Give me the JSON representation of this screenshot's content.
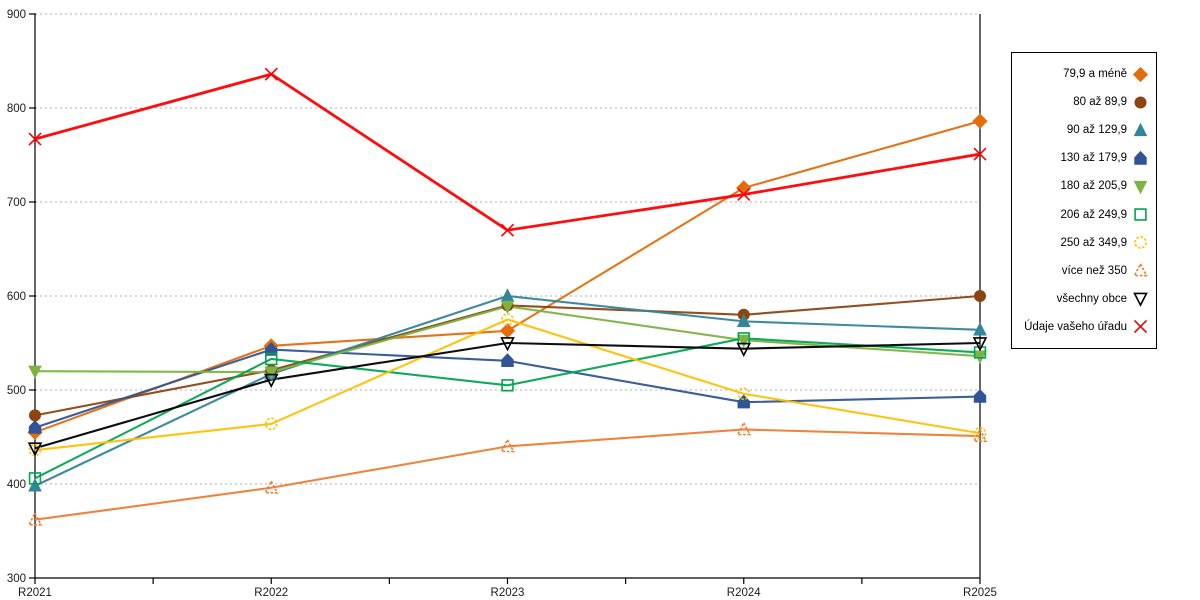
{
  "chart_data": {
    "type": "line",
    "x": [
      "R2021",
      "R2022",
      "R2023",
      "R2024",
      "R2025"
    ],
    "ylim": [
      300,
      900
    ],
    "yticks": [
      300,
      400,
      500,
      600,
      700,
      800,
      900
    ],
    "grid": "horizontal-dashed",
    "legend_position": "right-outside",
    "title": "",
    "xlabel": "",
    "ylabel": "",
    "series": [
      {
        "name": "79,9 a méně",
        "marker": "diamond",
        "filled": true,
        "color": "#E46C0A",
        "values": [
          455,
          547,
          563,
          715,
          786
        ]
      },
      {
        "name": "80 až 89,9",
        "marker": "circle",
        "filled": true,
        "color": "#8C4510",
        "values": [
          473,
          521,
          590,
          580,
          600
        ]
      },
      {
        "name": "90 až 129,9",
        "marker": "triangle-up",
        "filled": true,
        "color": "#31859C",
        "values": [
          398,
          517,
          600,
          573,
          564
        ]
      },
      {
        "name": "130 až 179,9",
        "marker": "pentagon",
        "filled": true,
        "color": "#2F5597",
        "values": [
          460,
          543,
          531,
          487,
          493
        ]
      },
      {
        "name": "180 až 205,9",
        "marker": "triangle-down",
        "filled": true,
        "color": "#7CB342",
        "values": [
          520,
          519,
          589,
          553,
          536
        ]
      },
      {
        "name": "206 až 249,9",
        "marker": "square",
        "filled": false,
        "color": "#00A550",
        "values": [
          406,
          533,
          505,
          555,
          540
        ]
      },
      {
        "name": "250 až 349,9",
        "marker": "circle",
        "filled": false,
        "color": "#FFC000",
        "values": [
          436,
          464,
          575,
          496,
          454
        ]
      },
      {
        "name": "více než 350",
        "marker": "triangle-up",
        "filled": false,
        "color": "#ED7D31",
        "values": [
          362,
          396,
          440,
          458,
          451
        ]
      },
      {
        "name": "všechny obce",
        "marker": "triangle-down",
        "filled": false,
        "color": "#000000",
        "values": [
          438,
          511,
          550,
          544,
          550
        ]
      },
      {
        "name": "Údaje vašeho úřadu",
        "marker": "x",
        "filled": false,
        "color": "#FF0000",
        "values": [
          767,
          836,
          670,
          708,
          751
        ]
      }
    ]
  }
}
